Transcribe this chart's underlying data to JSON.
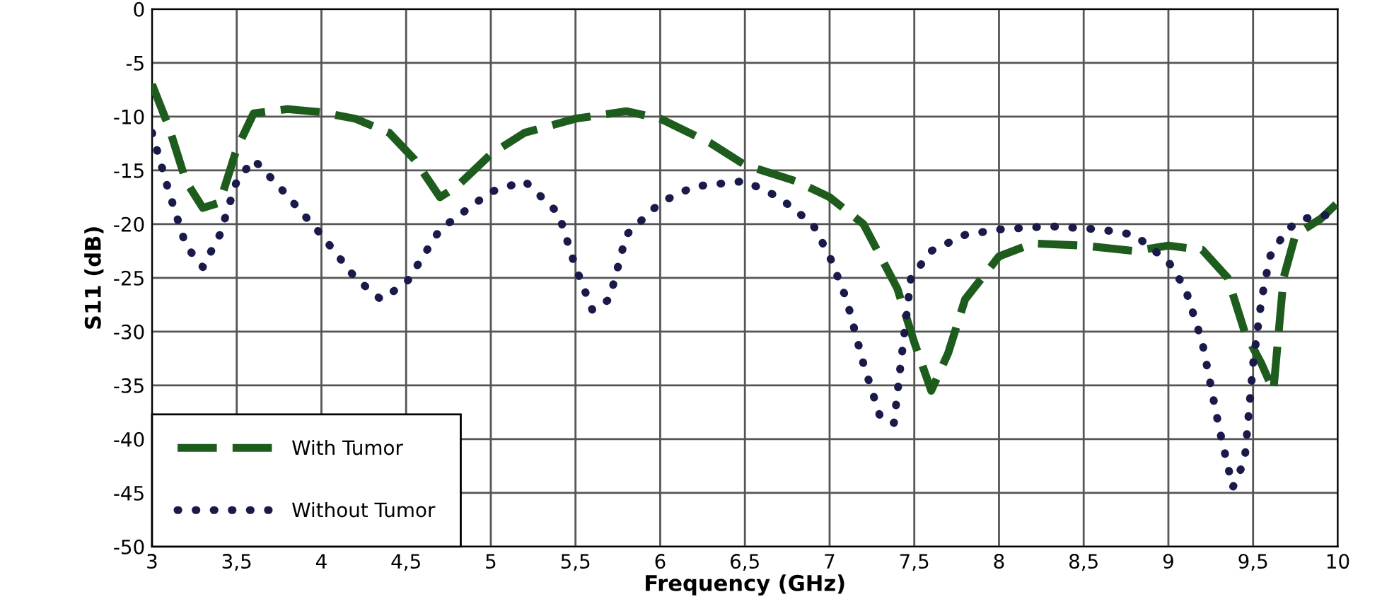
{
  "chart_data": {
    "type": "line",
    "xlabel": "Frequency (GHz)",
    "ylabel": "S11 (dB)",
    "xlim": [
      3,
      10
    ],
    "ylim": [
      -50,
      0
    ],
    "xticks": [
      3,
      {
        "value": 3.5,
        "label": "3,5"
      },
      4,
      {
        "value": 4.5,
        "label": "4,5"
      },
      5,
      {
        "value": 5.5,
        "label": "5,5"
      },
      6,
      {
        "value": 6.5,
        "label": "6,5"
      },
      7,
      {
        "value": 7.5,
        "label": "7,5"
      },
      8,
      {
        "value": 8.5,
        "label": "8,5"
      },
      9,
      {
        "value": 9.5,
        "label": "9,5"
      },
      10
    ],
    "yticks": [
      -50,
      -45,
      -40,
      -35,
      -30,
      -25,
      -20,
      -15,
      -10,
      -5,
      0
    ],
    "grid": true,
    "legend": "bottom left",
    "marker": "none",
    "series": [
      {
        "name": "With Tumor",
        "color": "#1e5c1e",
        "line_style": "dashed",
        "x": [
          3,
          3.1,
          3.2,
          3.3,
          3.4,
          3.5,
          3.6,
          3.8,
          4,
          4.2,
          4.4,
          4.55,
          4.7,
          4.8,
          5,
          5.2,
          5.5,
          5.8,
          6,
          6.3,
          6.5,
          6.8,
          7,
          7.2,
          7.4,
          7.5,
          7.6,
          7.7,
          7.8,
          8,
          8.2,
          8.5,
          8.8,
          9,
          9.2,
          9.35,
          9.45,
          9.55,
          9.62,
          9.68,
          9.75,
          9.9,
          10
        ],
        "values": [
          -7,
          -11,
          -16,
          -18.5,
          -18,
          -13,
          -9.7,
          -9.3,
          -9.6,
          -10.2,
          -11.5,
          -14,
          -17.5,
          -16.5,
          -13.5,
          -11.5,
          -10.2,
          -9.5,
          -10.2,
          -12.5,
          -14.5,
          -16,
          -17.5,
          -20,
          -26,
          -31,
          -35.5,
          -32,
          -27,
          -23,
          -21.8,
          -22,
          -22.5,
          -22,
          -22.4,
          -25,
          -30,
          -33,
          -35.5,
          -25,
          -21,
          -19.5,
          -18
        ]
      },
      {
        "name": "Without Tumor",
        "color": "#1a1a4a",
        "line_style": "dotted",
        "x": [
          3,
          3.1,
          3.2,
          3.3,
          3.4,
          3.5,
          3.6,
          3.75,
          4,
          4.2,
          4.35,
          4.5,
          4.7,
          5,
          5.2,
          5.4,
          5.5,
          5.6,
          5.7,
          5.8,
          6,
          6.2,
          6.5,
          6.7,
          6.9,
          7,
          7.1,
          7.2,
          7.3,
          7.38,
          7.42,
          7.48,
          7.6,
          7.8,
          8,
          8.3,
          8.6,
          8.8,
          9,
          9.1,
          9.2,
          9.3,
          9.38,
          9.45,
          9.5,
          9.55,
          9.6,
          9.7,
          9.8,
          10
        ],
        "values": [
          -11.5,
          -17,
          -22,
          -24,
          -21,
          -16,
          -14,
          -16.5,
          -21,
          -25,
          -27,
          -25.5,
          -20.5,
          -17,
          -16,
          -19,
          -24,
          -28,
          -27,
          -21,
          -18,
          -16.5,
          -16,
          -17.5,
          -20,
          -23,
          -27,
          -33,
          -38,
          -38.5,
          -33,
          -25,
          -22.5,
          -21,
          -20.5,
          -20.2,
          -20.5,
          -21,
          -23.5,
          -26,
          -31,
          -39,
          -44.5,
          -42,
          -33,
          -27,
          -23,
          -20.5,
          -19.5,
          -19
        ]
      }
    ]
  }
}
